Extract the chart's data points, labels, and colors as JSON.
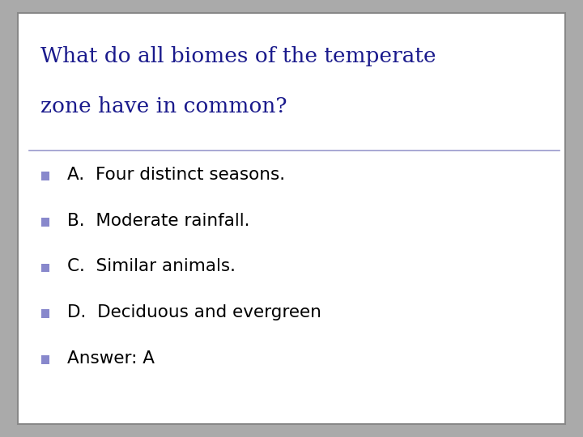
{
  "title_line1": "What do all biomes of the temperate",
  "title_line2": "zone have in common?",
  "title_color": "#1a1a8c",
  "title_fontsize": 19,
  "bullet_color": "#8888cc",
  "bullet_text_color": "#000000",
  "items": [
    "A.  Four distinct seasons.",
    "B.  Moderate rainfall.",
    "C.  Similar animals.",
    "D.  Deciduous and evergreen",
    "Answer: A"
  ],
  "item_fontsize": 15.5,
  "background_color": "#ffffff",
  "border_color": "#888888",
  "line_color": "#9999cc",
  "outer_bg": "#aaaaaa"
}
